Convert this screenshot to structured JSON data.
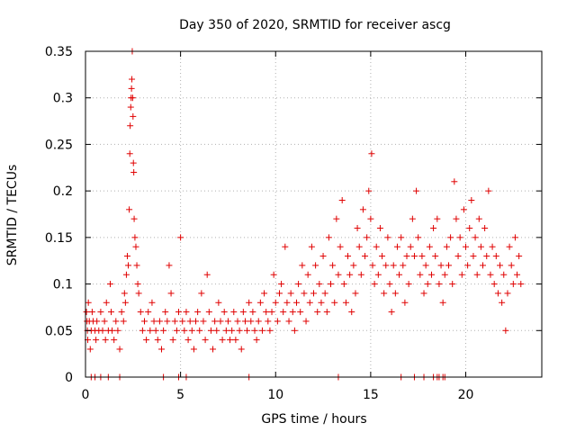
{
  "chart_data": {
    "type": "scatter",
    "title": "Day 350 of 2020, SRMTID for receiver ascg",
    "xlabel": "GPS time / hours",
    "ylabel": "SRMTID / TECUs",
    "xlim": [
      0,
      24
    ],
    "ylim": [
      0,
      0.35
    ],
    "x_ticks": [
      0,
      5,
      10,
      15,
      20
    ],
    "x_tick_labels": [
      "0",
      "5",
      "10",
      "15",
      "20"
    ],
    "y_ticks": [
      0,
      0.05,
      0.1,
      0.15,
      0.2,
      0.25,
      0.3,
      0.35
    ],
    "y_tick_labels": [
      "0",
      "0.05",
      "0.1",
      "0.15",
      "0.2",
      "0.25",
      "0.3",
      "0.35"
    ],
    "grid": true,
    "marker": "+",
    "color": "#e00000",
    "series": [
      {
        "name": "SRMTID",
        "points": [
          [
            0.05,
            0.07
          ],
          [
            0.08,
            0.06
          ],
          [
            0.1,
            0.05
          ],
          [
            0.12,
            0.04
          ],
          [
            0.15,
            0.08
          ],
          [
            0.2,
            0.06
          ],
          [
            0.25,
            0.03
          ],
          [
            0.3,
            0.05
          ],
          [
            0.35,
            0.07
          ],
          [
            0.4,
            0.06
          ],
          [
            0.5,
            0.05
          ],
          [
            0.55,
            0.04
          ],
          [
            0.6,
            0.06
          ],
          [
            0.7,
            0.05
          ],
          [
            0.8,
            0.07
          ],
          [
            0.9,
            0.05
          ],
          [
            1.0,
            0.06
          ],
          [
            1.05,
            0.04
          ],
          [
            1.1,
            0.08
          ],
          [
            1.2,
            0.05
          ],
          [
            1.3,
            0.1
          ],
          [
            1.35,
            0.07
          ],
          [
            1.4,
            0.05
          ],
          [
            1.5,
            0.04
          ],
          [
            1.6,
            0.06
          ],
          [
            1.7,
            0.05
          ],
          [
            1.8,
            0.03
          ],
          [
            1.9,
            0.07
          ],
          [
            2.0,
            0.06
          ],
          [
            2.05,
            0.09
          ],
          [
            2.1,
            0.08
          ],
          [
            2.15,
            0.11
          ],
          [
            2.2,
            0.13
          ],
          [
            2.25,
            0.12
          ],
          [
            2.3,
            0.18
          ],
          [
            2.33,
            0.24
          ],
          [
            2.35,
            0.27
          ],
          [
            2.38,
            0.29
          ],
          [
            2.4,
            0.3
          ],
          [
            2.42,
            0.31
          ],
          [
            2.44,
            0.32
          ],
          [
            2.46,
            0.35
          ],
          [
            2.48,
            0.3
          ],
          [
            2.5,
            0.28
          ],
          [
            2.52,
            0.23
          ],
          [
            2.54,
            0.22
          ],
          [
            2.56,
            0.17
          ],
          [
            2.6,
            0.15
          ],
          [
            2.65,
            0.14
          ],
          [
            2.7,
            0.12
          ],
          [
            2.75,
            0.1
          ],
          [
            2.8,
            0.09
          ],
          [
            2.9,
            0.07
          ],
          [
            3.0,
            0.05
          ],
          [
            3.1,
            0.06
          ],
          [
            3.2,
            0.04
          ],
          [
            3.3,
            0.07
          ],
          [
            3.4,
            0.05
          ],
          [
            3.5,
            0.08
          ],
          [
            3.6,
            0.06
          ],
          [
            3.7,
            0.05
          ],
          [
            3.8,
            0.04
          ],
          [
            3.9,
            0.06
          ],
          [
            4.0,
            0.03
          ],
          [
            4.1,
            0.05
          ],
          [
            4.2,
            0.07
          ],
          [
            4.3,
            0.06
          ],
          [
            4.4,
            0.12
          ],
          [
            4.5,
            0.09
          ],
          [
            4.6,
            0.04
          ],
          [
            4.7,
            0.06
          ],
          [
            4.8,
            0.05
          ],
          [
            4.9,
            0.07
          ],
          [
            5.0,
            0.15
          ],
          [
            5.1,
            0.06
          ],
          [
            5.2,
            0.05
          ],
          [
            5.3,
            0.07
          ],
          [
            5.4,
            0.04
          ],
          [
            5.5,
            0.06
          ],
          [
            5.6,
            0.05
          ],
          [
            5.7,
            0.03
          ],
          [
            5.8,
            0.06
          ],
          [
            5.9,
            0.07
          ],
          [
            6.0,
            0.05
          ],
          [
            6.1,
            0.09
          ],
          [
            6.2,
            0.06
          ],
          [
            6.3,
            0.04
          ],
          [
            6.4,
            0.11
          ],
          [
            6.5,
            0.07
          ],
          [
            6.6,
            0.05
          ],
          [
            6.7,
            0.03
          ],
          [
            6.8,
            0.06
          ],
          [
            6.9,
            0.05
          ],
          [
            7.0,
            0.08
          ],
          [
            7.1,
            0.06
          ],
          [
            7.2,
            0.04
          ],
          [
            7.3,
            0.07
          ],
          [
            7.4,
            0.05
          ],
          [
            7.5,
            0.06
          ],
          [
            7.6,
            0.04
          ],
          [
            7.7,
            0.05
          ],
          [
            7.8,
            0.07
          ],
          [
            7.9,
            0.04
          ],
          [
            8.0,
            0.06
          ],
          [
            8.1,
            0.05
          ],
          [
            8.2,
            0.03
          ],
          [
            8.3,
            0.07
          ],
          [
            8.4,
            0.06
          ],
          [
            8.5,
            0.05
          ],
          [
            8.6,
            0.08
          ],
          [
            8.7,
            0.06
          ],
          [
            8.8,
            0.07
          ],
          [
            8.9,
            0.05
          ],
          [
            9.0,
            0.04
          ],
          [
            9.1,
            0.06
          ],
          [
            9.2,
            0.08
          ],
          [
            9.3,
            0.05
          ],
          [
            9.4,
            0.09
          ],
          [
            9.5,
            0.07
          ],
          [
            9.6,
            0.06
          ],
          [
            9.7,
            0.05
          ],
          [
            9.8,
            0.07
          ],
          [
            9.9,
            0.11
          ],
          [
            10.0,
            0.08
          ],
          [
            10.1,
            0.06
          ],
          [
            10.2,
            0.09
          ],
          [
            10.3,
            0.1
          ],
          [
            10.4,
            0.07
          ],
          [
            10.5,
            0.14
          ],
          [
            10.6,
            0.08
          ],
          [
            10.7,
            0.06
          ],
          [
            10.8,
            0.09
          ],
          [
            10.9,
            0.07
          ],
          [
            11.0,
            0.05
          ],
          [
            11.1,
            0.08
          ],
          [
            11.2,
            0.1
          ],
          [
            11.3,
            0.07
          ],
          [
            11.4,
            0.12
          ],
          [
            11.5,
            0.09
          ],
          [
            11.6,
            0.06
          ],
          [
            11.7,
            0.11
          ],
          [
            11.8,
            0.08
          ],
          [
            11.9,
            0.14
          ],
          [
            12.0,
            0.09
          ],
          [
            12.1,
            0.12
          ],
          [
            12.2,
            0.07
          ],
          [
            12.3,
            0.1
          ],
          [
            12.4,
            0.08
          ],
          [
            12.5,
            0.13
          ],
          [
            12.6,
            0.09
          ],
          [
            12.7,
            0.07
          ],
          [
            12.8,
            0.15
          ],
          [
            12.9,
            0.1
          ],
          [
            13.0,
            0.12
          ],
          [
            13.1,
            0.08
          ],
          [
            13.2,
            0.17
          ],
          [
            13.3,
            0.11
          ],
          [
            13.4,
            0.14
          ],
          [
            13.5,
            0.19
          ],
          [
            13.6,
            0.1
          ],
          [
            13.7,
            0.08
          ],
          [
            13.8,
            0.13
          ],
          [
            13.9,
            0.11
          ],
          [
            14.0,
            0.07
          ],
          [
            14.1,
            0.12
          ],
          [
            14.2,
            0.09
          ],
          [
            14.3,
            0.16
          ],
          [
            14.4,
            0.14
          ],
          [
            14.5,
            0.11
          ],
          [
            14.6,
            0.18
          ],
          [
            14.7,
            0.13
          ],
          [
            14.8,
            0.15
          ],
          [
            14.9,
            0.2
          ],
          [
            15.0,
            0.17
          ],
          [
            15.05,
            0.24
          ],
          [
            15.1,
            0.12
          ],
          [
            15.2,
            0.1
          ],
          [
            15.3,
            0.14
          ],
          [
            15.4,
            0.11
          ],
          [
            15.5,
            0.16
          ],
          [
            15.6,
            0.13
          ],
          [
            15.7,
            0.09
          ],
          [
            15.8,
            0.12
          ],
          [
            15.9,
            0.15
          ],
          [
            16.0,
            0.1
          ],
          [
            16.1,
            0.07
          ],
          [
            16.2,
            0.12
          ],
          [
            16.3,
            0.09
          ],
          [
            16.4,
            0.14
          ],
          [
            16.5,
            0.11
          ],
          [
            16.6,
            0.15
          ],
          [
            16.7,
            0.12
          ],
          [
            16.8,
            0.08
          ],
          [
            16.9,
            0.13
          ],
          [
            17.0,
            0.1
          ],
          [
            17.1,
            0.14
          ],
          [
            17.2,
            0.17
          ],
          [
            17.3,
            0.13
          ],
          [
            17.4,
            0.2
          ],
          [
            17.5,
            0.15
          ],
          [
            17.6,
            0.11
          ],
          [
            17.7,
            0.13
          ],
          [
            17.8,
            0.09
          ],
          [
            17.9,
            0.12
          ],
          [
            18.0,
            0.1
          ],
          [
            18.1,
            0.14
          ],
          [
            18.2,
            0.11
          ],
          [
            18.3,
            0.16
          ],
          [
            18.4,
            0.13
          ],
          [
            18.5,
            0.17
          ],
          [
            18.6,
            0.1
          ],
          [
            18.7,
            0.12
          ],
          [
            18.8,
            0.08
          ],
          [
            18.9,
            0.11
          ],
          [
            19.0,
            0.14
          ],
          [
            19.1,
            0.12
          ],
          [
            19.2,
            0.15
          ],
          [
            19.3,
            0.1
          ],
          [
            19.4,
            0.21
          ],
          [
            19.5,
            0.17
          ],
          [
            19.6,
            0.13
          ],
          [
            19.7,
            0.15
          ],
          [
            19.8,
            0.11
          ],
          [
            19.9,
            0.18
          ],
          [
            20.0,
            0.14
          ],
          [
            20.1,
            0.12
          ],
          [
            20.2,
            0.16
          ],
          [
            20.3,
            0.19
          ],
          [
            20.4,
            0.13
          ],
          [
            20.5,
            0.15
          ],
          [
            20.6,
            0.11
          ],
          [
            20.7,
            0.17
          ],
          [
            20.8,
            0.14
          ],
          [
            20.9,
            0.12
          ],
          [
            21.0,
            0.16
          ],
          [
            21.1,
            0.13
          ],
          [
            21.2,
            0.2
          ],
          [
            21.3,
            0.11
          ],
          [
            21.4,
            0.14
          ],
          [
            21.5,
            0.1
          ],
          [
            21.6,
            0.13
          ],
          [
            21.7,
            0.09
          ],
          [
            21.8,
            0.12
          ],
          [
            21.9,
            0.08
          ],
          [
            22.0,
            0.11
          ],
          [
            22.1,
            0.05
          ],
          [
            22.2,
            0.09
          ],
          [
            22.3,
            0.14
          ],
          [
            22.4,
            0.12
          ],
          [
            22.5,
            0.1
          ],
          [
            22.6,
            0.15
          ],
          [
            22.7,
            0.11
          ],
          [
            22.8,
            0.13
          ],
          [
            22.9,
            0.1
          ]
        ],
        "zero_points_x": [
          0.3,
          0.5,
          0.8,
          1.2,
          1.8,
          4.1,
          4.9,
          5.3,
          8.6,
          13.3,
          16.6,
          17.3,
          17.8,
          18.3,
          18.5,
          18.6,
          18.8,
          18.9
        ]
      }
    ]
  }
}
